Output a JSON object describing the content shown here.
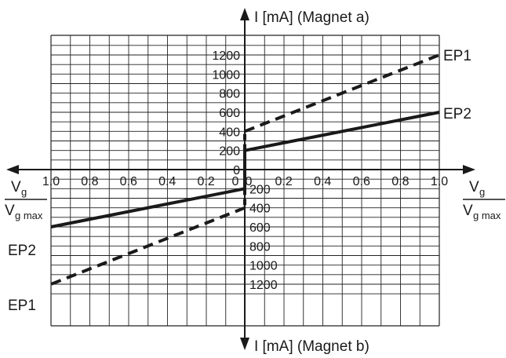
{
  "chart_data": {
    "type": "line",
    "top_axis_label": "I [mA]  (Magnet a)",
    "bottom_axis_label": "I [mA]  (Magnet b)",
    "x_axis_label": {
      "main": "V",
      "sub": "g",
      "den_main": "V",
      "den_sub": "g max"
    },
    "x_ticks_left": [
      "1.0",
      "0.8",
      "0.6",
      "0.4",
      "0.2"
    ],
    "x_ticks_right": [
      "0.2",
      "0.4",
      "0.6",
      "0.8",
      "1.0"
    ],
    "x_zero_labels": [
      "0",
      "0"
    ],
    "y_ticks_top": [
      "1200",
      "1000",
      "800",
      "600",
      "400",
      "200",
      "0"
    ],
    "y_ticks_bottom": [
      "200",
      "400",
      "600",
      "800",
      "1000",
      "1200"
    ],
    "xlim": [
      -1.0,
      1.0
    ],
    "ylim": [
      -1300,
      1300
    ],
    "grid": true,
    "series": [
      {
        "name": "EP1",
        "style": "dashed",
        "points": [
          [
            0,
            400
          ],
          [
            1.0,
            1200
          ]
        ]
      },
      {
        "name": "EP2",
        "style": "solid",
        "points": [
          [
            0,
            200
          ],
          [
            1.0,
            600
          ]
        ]
      },
      {
        "name": "EP2",
        "style": "solid",
        "points": [
          [
            0,
            -200
          ],
          [
            -1.0,
            -600
          ]
        ]
      },
      {
        "name": "EP1",
        "style": "dashed",
        "points": [
          [
            0,
            -400
          ],
          [
            -1.0,
            -1200
          ]
        ]
      }
    ],
    "jump_lines": [
      {
        "style": "solid",
        "from": [
          0,
          0
        ],
        "to": [
          0,
          200
        ]
      },
      {
        "style": "dashed",
        "from": [
          0,
          200
        ],
        "to": [
          0,
          400
        ]
      },
      {
        "style": "solid",
        "from": [
          0,
          0
        ],
        "to": [
          0,
          -200
        ]
      },
      {
        "style": "dashed",
        "from": [
          0,
          -200
        ],
        "to": [
          0,
          -400
        ]
      }
    ],
    "series_labels": [
      {
        "text": "EP1",
        "side": "right-top"
      },
      {
        "text": "EP2",
        "side": "right-mid"
      },
      {
        "text": "EP2",
        "side": "left-mid"
      },
      {
        "text": "EP1",
        "side": "left-bottom"
      }
    ]
  }
}
